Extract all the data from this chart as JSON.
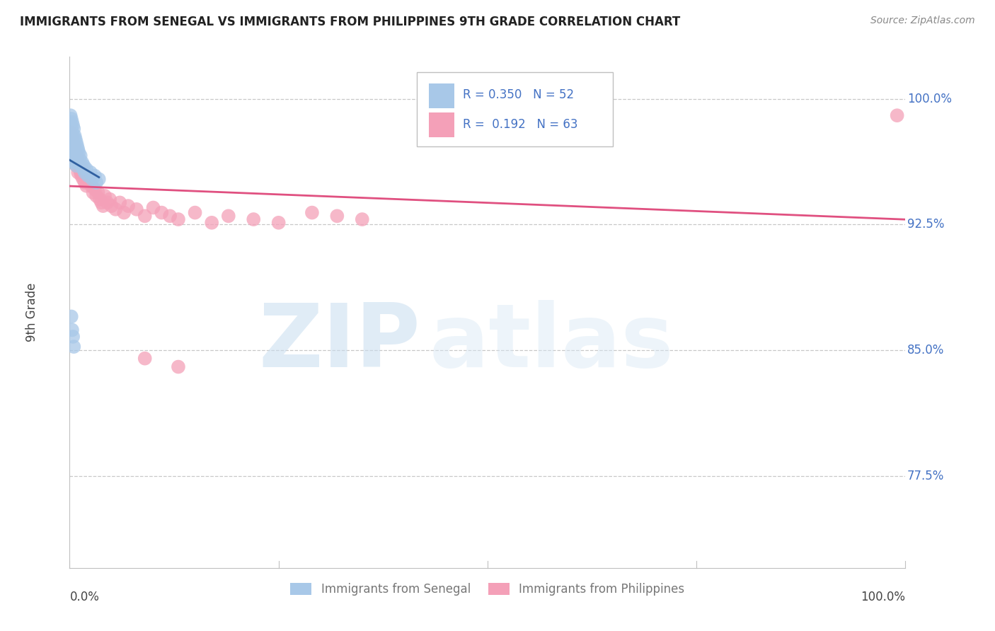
{
  "title": "IMMIGRANTS FROM SENEGAL VS IMMIGRANTS FROM PHILIPPINES 9TH GRADE CORRELATION CHART",
  "source": "Source: ZipAtlas.com",
  "ylabel": "9th Grade",
  "ytick_vals": [
    0.775,
    0.85,
    0.925,
    1.0
  ],
  "ytick_lbls": [
    "77.5%",
    "85.0%",
    "92.5%",
    "100.0%"
  ],
  "series1_color": "#a8c8e8",
  "series2_color": "#f4a0b8",
  "line1_color": "#3060a0",
  "line2_color": "#e05080",
  "background_color": "#ffffff",
  "watermark_zip": "ZIP",
  "watermark_atlas": "atlas",
  "legend_r1": "R = 0.350",
  "legend_n1": "N = 52",
  "legend_r2": "R =  0.192",
  "legend_n2": "N = 63",
  "senegal_x": [
    0.001,
    0.001,
    0.001,
    0.001,
    0.002,
    0.002,
    0.002,
    0.002,
    0.002,
    0.003,
    0.003,
    0.003,
    0.003,
    0.004,
    0.004,
    0.004,
    0.004,
    0.005,
    0.005,
    0.005,
    0.005,
    0.006,
    0.006,
    0.006,
    0.007,
    0.007,
    0.008,
    0.008,
    0.008,
    0.009,
    0.009,
    0.01,
    0.01,
    0.011,
    0.012,
    0.013,
    0.014,
    0.015,
    0.016,
    0.017,
    0.018,
    0.02,
    0.022,
    0.025,
    0.027,
    0.03,
    0.032,
    0.035,
    0.002,
    0.003,
    0.004,
    0.005
  ],
  "senegal_y": [
    0.99,
    0.985,
    0.98,
    0.975,
    0.988,
    0.982,
    0.978,
    0.972,
    0.968,
    0.986,
    0.98,
    0.974,
    0.968,
    0.984,
    0.978,
    0.972,
    0.964,
    0.982,
    0.976,
    0.97,
    0.962,
    0.978,
    0.972,
    0.966,
    0.976,
    0.968,
    0.974,
    0.968,
    0.96,
    0.972,
    0.964,
    0.97,
    0.962,
    0.968,
    0.964,
    0.966,
    0.96,
    0.962,
    0.958,
    0.96,
    0.956,
    0.958,
    0.954,
    0.956,
    0.952,
    0.954,
    0.95,
    0.952,
    0.87,
    0.862,
    0.858,
    0.852
  ],
  "philippines_x": [
    0.001,
    0.001,
    0.002,
    0.002,
    0.003,
    0.003,
    0.004,
    0.004,
    0.005,
    0.005,
    0.006,
    0.006,
    0.007,
    0.008,
    0.008,
    0.009,
    0.01,
    0.01,
    0.011,
    0.012,
    0.013,
    0.014,
    0.015,
    0.016,
    0.017,
    0.018,
    0.019,
    0.02,
    0.022,
    0.024,
    0.026,
    0.028,
    0.03,
    0.032,
    0.034,
    0.036,
    0.038,
    0.04,
    0.042,
    0.045,
    0.048,
    0.05,
    0.055,
    0.06,
    0.065,
    0.07,
    0.08,
    0.09,
    0.1,
    0.11,
    0.12,
    0.13,
    0.15,
    0.17,
    0.19,
    0.22,
    0.25,
    0.29,
    0.32,
    0.35,
    0.13,
    0.09,
    0.99
  ],
  "philippines_y": [
    0.98,
    0.975,
    0.978,
    0.972,
    0.976,
    0.97,
    0.974,
    0.968,
    0.972,
    0.966,
    0.97,
    0.964,
    0.968,
    0.966,
    0.96,
    0.964,
    0.962,
    0.956,
    0.96,
    0.958,
    0.956,
    0.954,
    0.958,
    0.952,
    0.956,
    0.95,
    0.954,
    0.948,
    0.952,
    0.95,
    0.948,
    0.944,
    0.946,
    0.942,
    0.944,
    0.94,
    0.938,
    0.936,
    0.942,
    0.938,
    0.94,
    0.936,
    0.934,
    0.938,
    0.932,
    0.936,
    0.934,
    0.93,
    0.935,
    0.932,
    0.93,
    0.928,
    0.932,
    0.926,
    0.93,
    0.928,
    0.926,
    0.932,
    0.93,
    0.928,
    0.84,
    0.845,
    0.99
  ]
}
